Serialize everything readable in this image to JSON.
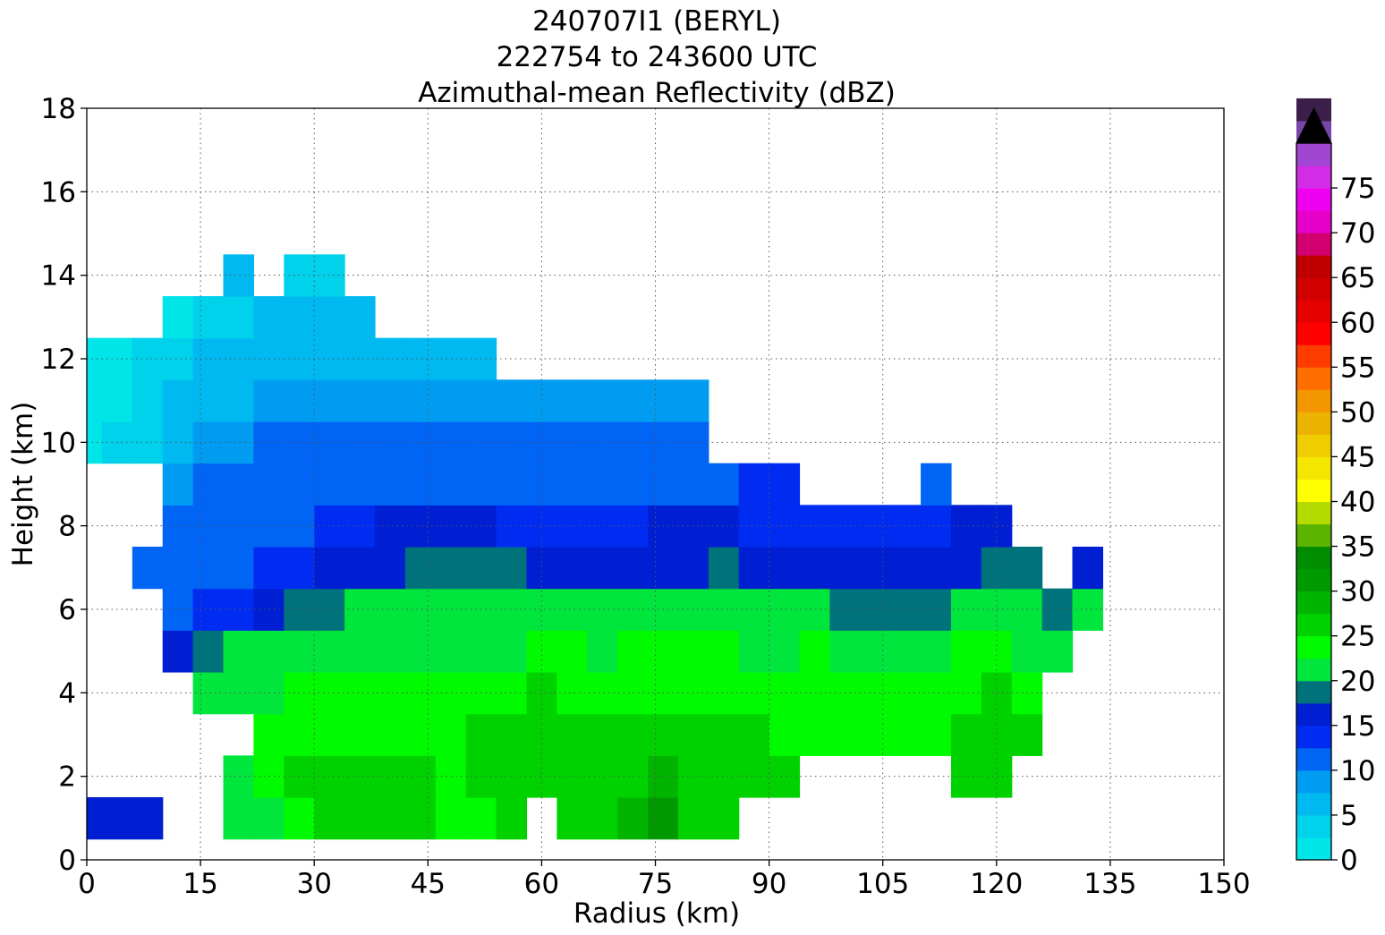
{
  "chart_data": {
    "type": "heatmap",
    "title_lines": [
      "240707I1 (BERYL)",
      "222754 to 243600 UTC",
      "Azimuthal-mean Reflectivity (dBZ)"
    ],
    "xlabel": "Radius (km)",
    "ylabel": "Height (km)",
    "xlim": [
      0,
      150
    ],
    "ylim": [
      0,
      18
    ],
    "xticks": [
      "0",
      "15",
      "30",
      "45",
      "60",
      "75",
      "90",
      "105",
      "120",
      "135",
      "150"
    ],
    "yticks": [
      "0",
      "2",
      "4",
      "6",
      "8",
      "10",
      "12",
      "14",
      "16",
      "18"
    ],
    "grid": true,
    "colorbar": {
      "min": 0,
      "max": 80,
      "step": 2.5,
      "extend": "max",
      "ticks": [
        "0",
        "5",
        "10",
        "15",
        "20",
        "25",
        "30",
        "35",
        "40",
        "45",
        "50",
        "55",
        "60",
        "65",
        "70",
        "75"
      ],
      "colors": [
        "#00e5e8",
        "#00d2ec",
        "#00b9f0",
        "#009cf2",
        "#0064f5",
        "#002cf2",
        "#001fd2",
        "#00727c",
        "#00e63c",
        "#00fa00",
        "#00d200",
        "#00b400",
        "#009900",
        "#008c00",
        "#5ab400",
        "#b4dc00",
        "#ffff00",
        "#f5e600",
        "#f0cd00",
        "#ecb400",
        "#f39600",
        "#ff6e00",
        "#ff3c00",
        "#ff0000",
        "#e60000",
        "#d20000",
        "#c00000",
        "#d2006e",
        "#e600c8",
        "#f000f0",
        "#d22de6",
        "#a046d2",
        "#7846aa",
        "#3c1e4b"
      ],
      "overflow_color": "#000000"
    },
    "x": [
      0,
      4,
      8,
      12,
      16,
      20,
      24,
      28,
      32,
      36,
      40,
      44,
      48,
      52,
      56,
      60,
      64,
      68,
      72,
      76,
      80,
      84,
      88,
      92,
      96,
      100,
      104,
      108,
      112,
      116,
      120,
      124,
      128,
      132
    ],
    "y": [
      1,
      2,
      3,
      4,
      5,
      6,
      7,
      8,
      9,
      10,
      11,
      12,
      13,
      14
    ],
    "z": [
      [
        17,
        17,
        15,
        null,
        null,
        21,
        22,
        24,
        25,
        25,
        25,
        25,
        24,
        24,
        25,
        null,
        26,
        27,
        28,
        30,
        27,
        26,
        null,
        null,
        null,
        null,
        null,
        null,
        null,
        null,
        null,
        null,
        null,
        null
      ],
      [
        null,
        null,
        null,
        null,
        null,
        21,
        24,
        25,
        25,
        25,
        25,
        25,
        24,
        26,
        27,
        27,
        27,
        27,
        27,
        29,
        27,
        27,
        25,
        25,
        null,
        null,
        null,
        null,
        null,
        25,
        26,
        null,
        null,
        null
      ],
      [
        null,
        null,
        null,
        null,
        null,
        null,
        23,
        24,
        24,
        24,
        24,
        24,
        24,
        25,
        25,
        26,
        25,
        25,
        25,
        26,
        26,
        25,
        25,
        24,
        24,
        24,
        24,
        24,
        24,
        25,
        27,
        25,
        null,
        null
      ],
      [
        null,
        null,
        null,
        null,
        20,
        21,
        22,
        23,
        23,
        23,
        23,
        24,
        24,
        24,
        24,
        25,
        24,
        24,
        24,
        24,
        24,
        24,
        23,
        23,
        23,
        23,
        23,
        23,
        23,
        24,
        26,
        24,
        null,
        null
      ],
      [
        null,
        null,
        null,
        15,
        18,
        20,
        21,
        21,
        21,
        22,
        22,
        22,
        22,
        22,
        22,
        23,
        23,
        22,
        23,
        23,
        23,
        23,
        22,
        22,
        23,
        22,
        22,
        22,
        22,
        23,
        23,
        22,
        21,
        null
      ],
      [
        null,
        null,
        null,
        12,
        13,
        14,
        17,
        18,
        19,
        20,
        20,
        20,
        20,
        20,
        20,
        20,
        20,
        20,
        20,
        20,
        20,
        20,
        20,
        20,
        20,
        19,
        19,
        19,
        19,
        20,
        20,
        20,
        19,
        20
      ],
      [
        null,
        null,
        11,
        12,
        12,
        12,
        13,
        14,
        15,
        16,
        17,
        18,
        18,
        18,
        18,
        17,
        17,
        17,
        17,
        17,
        17,
        18,
        16,
        16,
        16,
        17,
        17,
        17,
        17,
        17,
        18,
        18,
        null,
        16
      ],
      [
        null,
        null,
        null,
        11,
        11,
        12,
        12,
        12,
        13,
        14,
        15,
        15,
        15,
        15,
        14,
        13,
        13,
        14,
        14,
        15,
        15,
        15,
        14,
        13,
        13,
        13,
        13,
        13,
        13,
        15,
        16,
        null,
        null,
        null
      ],
      [
        null,
        null,
        null,
        9,
        10,
        11,
        11,
        12,
        12,
        12,
        12,
        12,
        12,
        12,
        12,
        12,
        12,
        12,
        12,
        12,
        12,
        12,
        13,
        13,
        null,
        null,
        null,
        null,
        12,
        null,
        null,
        null,
        null,
        null
      ],
      [
        1,
        3,
        4,
        6,
        8,
        9,
        10,
        10,
        10,
        11,
        11,
        11,
        11,
        11,
        11,
        11,
        11,
        11,
        11,
        11,
        11,
        null,
        null,
        null,
        null,
        null,
        null,
        null,
        null,
        null,
        null,
        null,
        null,
        null
      ],
      [
        1,
        2,
        3,
        5,
        6,
        7,
        8,
        8,
        8,
        9,
        9,
        9,
        9,
        9,
        8,
        8,
        8,
        8,
        8,
        8,
        8,
        null,
        null,
        null,
        null,
        null,
        null,
        null,
        null,
        null,
        null,
        null,
        null,
        null
      ],
      [
        0,
        2,
        3,
        4,
        5,
        6,
        6,
        7,
        7,
        6,
        7,
        7,
        7,
        6,
        null,
        null,
        null,
        null,
        null,
        null,
        null,
        null,
        null,
        null,
        null,
        null,
        null,
        null,
        null,
        null,
        null,
        null,
        null,
        null
      ],
      [
        null,
        null,
        null,
        2,
        3,
        4,
        5,
        6,
        6,
        5,
        null,
        null,
        null,
        null,
        null,
        null,
        null,
        null,
        null,
        null,
        null,
        null,
        null,
        null,
        null,
        null,
        null,
        null,
        null,
        null,
        null,
        null,
        null,
        null
      ],
      [
        null,
        null,
        null,
        null,
        null,
        5,
        null,
        4,
        4,
        null,
        null,
        null,
        null,
        null,
        null,
        null,
        null,
        null,
        null,
        null,
        null,
        null,
        null,
        null,
        null,
        null,
        null,
        null,
        null,
        null,
        null,
        null,
        null,
        null
      ]
    ]
  }
}
